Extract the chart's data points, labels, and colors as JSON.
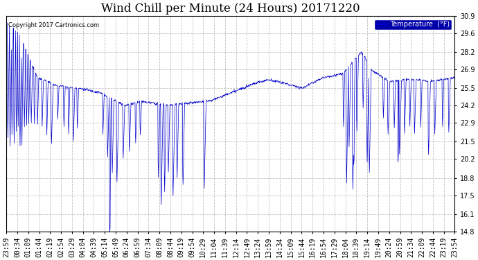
{
  "title": "Wind Chill per Minute (24 Hours) 20171220",
  "copyright_text": "Copyright 2017 Cartronics.com",
  "legend_label": "Temperature  (°F)",
  "ylim": [
    14.8,
    30.9
  ],
  "yticks": [
    14.8,
    16.1,
    17.5,
    18.8,
    20.2,
    21.5,
    22.9,
    24.2,
    25.5,
    26.9,
    28.2,
    29.6,
    30.9
  ],
  "line_color": "#0000cc",
  "background_color": "#ffffff",
  "plot_bg_color": "#ffffff",
  "grid_color": "#bbbbbb",
  "title_fontsize": 12,
  "tick_fontsize": 7,
  "legend_bg": "#0000aa",
  "x_labels": [
    "23:59",
    "00:34",
    "01:09",
    "01:44",
    "02:19",
    "02:54",
    "03:29",
    "04:04",
    "04:39",
    "05:14",
    "05:49",
    "06:24",
    "06:59",
    "07:34",
    "08:09",
    "08:44",
    "09:19",
    "09:54",
    "10:29",
    "11:04",
    "11:39",
    "12:14",
    "12:49",
    "13:24",
    "13:59",
    "14:34",
    "15:09",
    "15:44",
    "16:19",
    "16:54",
    "17:29",
    "18:04",
    "18:39",
    "19:14",
    "19:49",
    "20:24",
    "20:59",
    "21:34",
    "22:09",
    "22:44",
    "23:19",
    "23:54"
  ]
}
